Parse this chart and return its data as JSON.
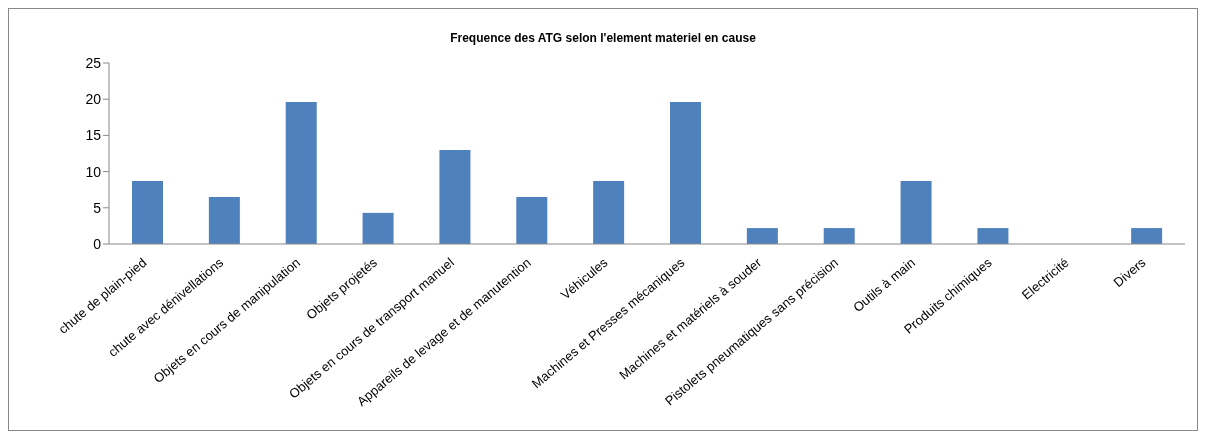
{
  "chart_data": {
    "type": "bar",
    "title": "Frequence des ATG selon l'element materiel en cause",
    "categories": [
      "chute de plain-pied",
      "chute avec dénivellations",
      "Objets en cours de manipulation",
      "Objets projetés",
      "Objets en cours de transport manuel",
      "Appareils de levage et de manutention",
      "Véhicules",
      "Machines et Presses mécaniques",
      "Machines et matériels à souder",
      "Pistolets pneumatiques sans précision",
      "Outils à main",
      "Produits chimiques",
      "Electricité",
      "Divers"
    ],
    "values": [
      8.7,
      6.5,
      19.6,
      4.3,
      13,
      6.5,
      8.7,
      19.6,
      2.2,
      2.2,
      8.7,
      2.2,
      0,
      2.2
    ],
    "color": "#4f81bd",
    "ylim": [
      0,
      25
    ],
    "yticks": [
      0,
      5,
      10,
      15,
      20,
      25
    ],
    "grid": false
  }
}
